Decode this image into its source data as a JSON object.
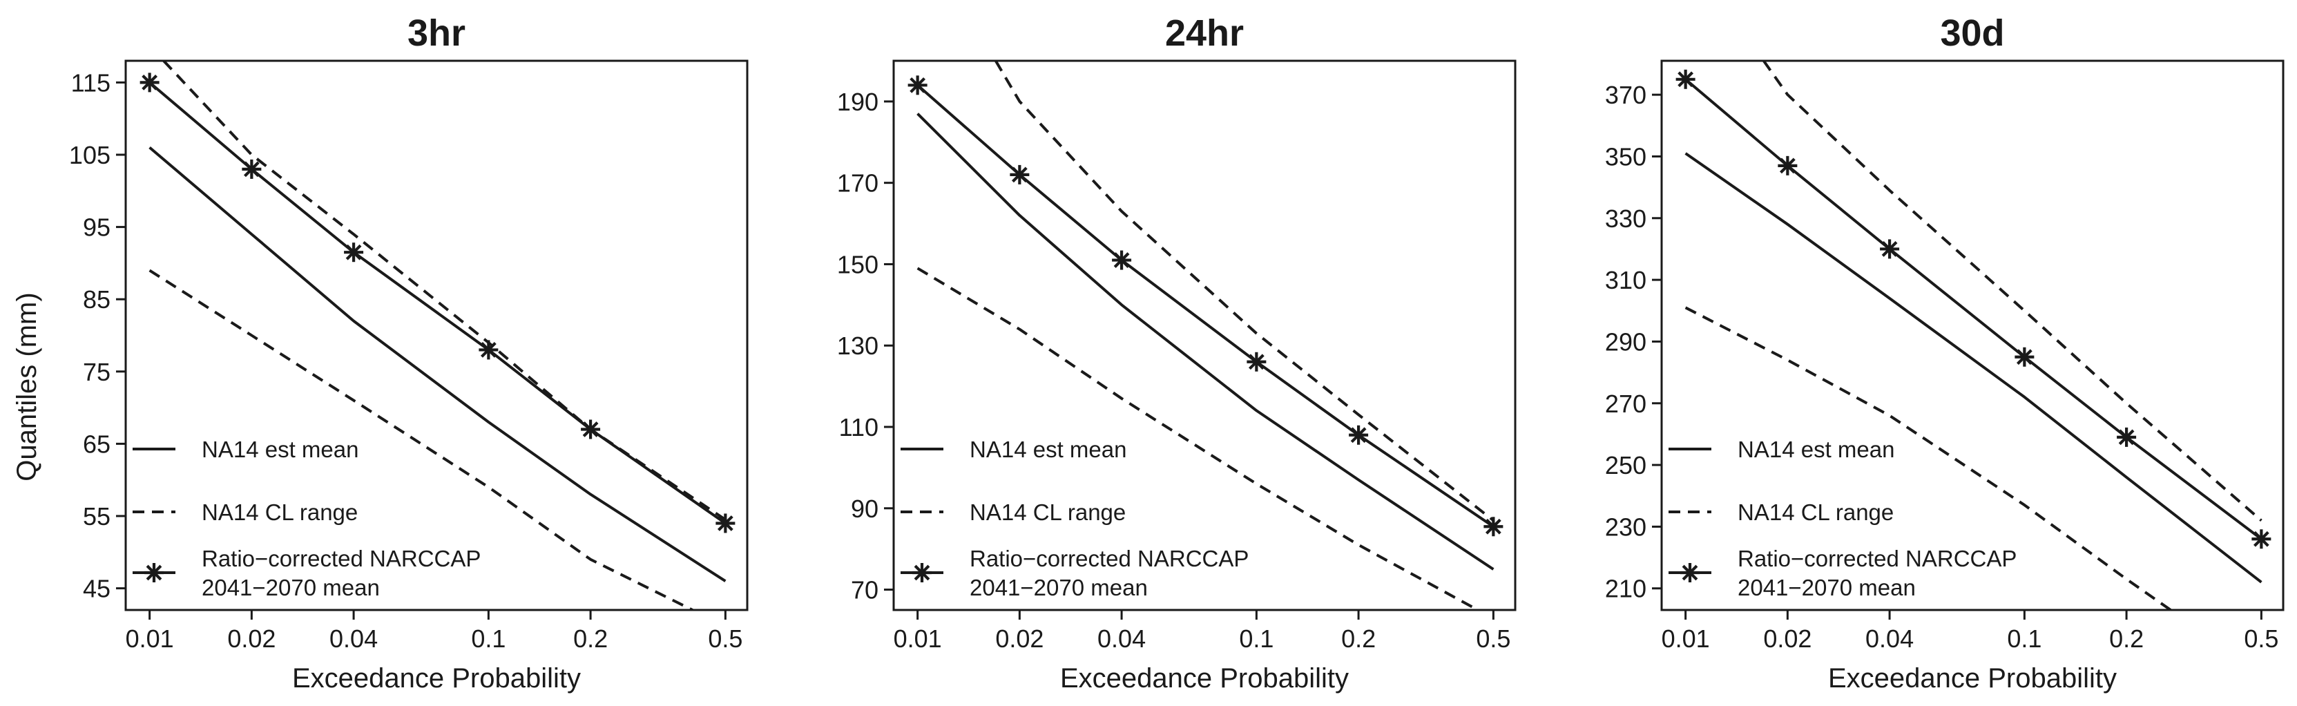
{
  "figure": {
    "ylabel": "Quantiles (mm)",
    "xlabel": "Exceedance Probability"
  },
  "legend": [
    {
      "label_lines": [
        "NA14 est mean"
      ],
      "style": "solid",
      "marker": false
    },
    {
      "label_lines": [
        "NA14 CL range"
      ],
      "style": "dashed",
      "marker": false
    },
    {
      "label_lines": [
        "Ratio−corrected NARCCAP",
        "2041−2070 mean"
      ],
      "style": "solid",
      "marker": true
    }
  ],
  "colors": {
    "line": "#1a1a1a",
    "background": "#ffffff"
  },
  "chart_data": [
    {
      "type": "line",
      "title": "3hr",
      "xscale": "log",
      "xlim": [
        0.0085,
        0.58
      ],
      "ylim": [
        42,
        118
      ],
      "x_ticks": [
        0.01,
        0.02,
        0.04,
        0.1,
        0.2,
        0.5
      ],
      "x_tick_labels": [
        "0.01",
        "0.02",
        "0.04",
        "0.1",
        "0.2",
        "0.5"
      ],
      "y_ticks": [
        45,
        55,
        65,
        75,
        85,
        95,
        105,
        115
      ],
      "series": [
        {
          "name": "NA14 est mean",
          "style": "solid",
          "x": [
            0.01,
            0.02,
            0.04,
            0.1,
            0.2,
            0.5
          ],
          "values": [
            106,
            94,
            82,
            68,
            58,
            46
          ]
        },
        {
          "name": "NA14 CL range (upper)",
          "style": "dashed",
          "x": [
            0.011,
            0.02,
            0.04,
            0.1,
            0.2,
            0.5
          ],
          "values": [
            118,
            105,
            94,
            79,
            67,
            54.5
          ]
        },
        {
          "name": "NA14 CL range (lower)",
          "style": "dashed",
          "x": [
            0.01,
            0.02,
            0.04,
            0.1,
            0.2,
            0.4
          ],
          "values": [
            89,
            80,
            71,
            59,
            49,
            42
          ]
        },
        {
          "name": "Ratio-corrected NARCCAP 2041-2070 mean",
          "style": "solid",
          "marker": "asterisk",
          "x": [
            0.01,
            0.02,
            0.04,
            0.1,
            0.2,
            0.5
          ],
          "values": [
            115,
            103,
            91.5,
            78,
            67,
            54
          ]
        }
      ]
    },
    {
      "type": "line",
      "title": "24hr",
      "xscale": "log",
      "xlim": [
        0.0085,
        0.58
      ],
      "ylim": [
        65,
        200
      ],
      "x_ticks": [
        0.01,
        0.02,
        0.04,
        0.1,
        0.2,
        0.5
      ],
      "x_tick_labels": [
        "0.01",
        "0.02",
        "0.04",
        "0.1",
        "0.2",
        "0.5"
      ],
      "y_ticks": [
        70,
        90,
        110,
        130,
        150,
        170,
        190
      ],
      "series": [
        {
          "name": "NA14 est mean",
          "style": "solid",
          "x": [
            0.01,
            0.02,
            0.04,
            0.1,
            0.2,
            0.5
          ],
          "values": [
            187,
            162,
            140,
            114,
            97,
            75
          ]
        },
        {
          "name": "NA14 CL range (upper)",
          "style": "dashed",
          "x": [
            0.017,
            0.02,
            0.04,
            0.1,
            0.2,
            0.5
          ],
          "values": [
            200,
            190,
            163,
            133,
            113,
            87
          ]
        },
        {
          "name": "NA14 CL range (lower)",
          "style": "dashed",
          "x": [
            0.01,
            0.02,
            0.04,
            0.1,
            0.2,
            0.45
          ],
          "values": [
            149,
            134,
            117,
            96,
            81,
            65
          ]
        },
        {
          "name": "Ratio-corrected NARCCAP 2041-2070 mean",
          "style": "solid",
          "marker": "asterisk",
          "x": [
            0.01,
            0.02,
            0.04,
            0.1,
            0.2,
            0.5
          ],
          "values": [
            194,
            172,
            151,
            126,
            108,
            85.5
          ]
        }
      ]
    },
    {
      "type": "line",
      "title": "30d",
      "xscale": "log",
      "xlim": [
        0.0085,
        0.58
      ],
      "ylim": [
        203,
        381
      ],
      "x_ticks": [
        0.01,
        0.02,
        0.04,
        0.1,
        0.2,
        0.5
      ],
      "x_tick_labels": [
        "0.01",
        "0.02",
        "0.04",
        "0.1",
        "0.2",
        "0.5"
      ],
      "y_ticks": [
        210,
        230,
        250,
        270,
        290,
        310,
        330,
        350,
        370
      ],
      "series": [
        {
          "name": "NA14 est mean",
          "style": "solid",
          "x": [
            0.01,
            0.02,
            0.04,
            0.1,
            0.2,
            0.5
          ],
          "values": [
            351,
            328,
            304,
            272,
            246,
            212
          ]
        },
        {
          "name": "NA14 CL range (upper)",
          "style": "dashed",
          "x": [
            0.017,
            0.02,
            0.04,
            0.1,
            0.2,
            0.5
          ],
          "values": [
            381,
            370,
            339,
            300,
            270,
            232
          ]
        },
        {
          "name": "NA14 CL range (lower)",
          "style": "dashed",
          "x": [
            0.01,
            0.02,
            0.04,
            0.1,
            0.2,
            0.27
          ],
          "values": [
            301,
            284,
            266,
            237,
            213,
            203
          ]
        },
        {
          "name": "Ratio-corrected NARCCAP 2041-2070 mean",
          "style": "solid",
          "marker": "asterisk",
          "x": [
            0.01,
            0.02,
            0.04,
            0.1,
            0.2,
            0.5
          ],
          "values": [
            375,
            347,
            320,
            285,
            259,
            226
          ]
        }
      ]
    }
  ]
}
